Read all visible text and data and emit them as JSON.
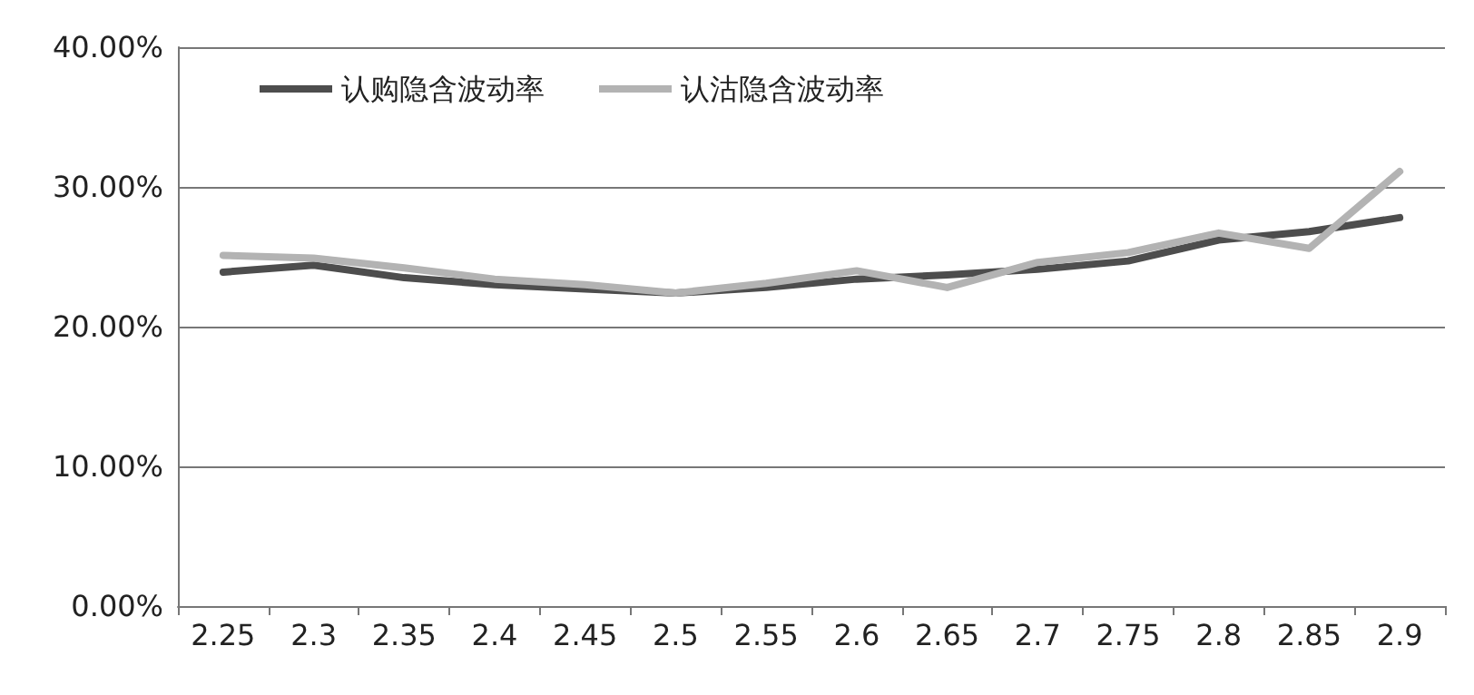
{
  "chart_data": {
    "type": "line",
    "categories": [
      "2.25",
      "2.3",
      "2.35",
      "2.4",
      "2.45",
      "2.5",
      "2.55",
      "2.6",
      "2.65",
      "2.7",
      "2.75",
      "2.8",
      "2.85",
      "2.9"
    ],
    "series": [
      {
        "name": "认购隐含波动率",
        "color": "#4d4d4d",
        "values": [
          23.9,
          24.4,
          23.5,
          23.0,
          22.7,
          22.4,
          22.8,
          23.4,
          23.7,
          24.1,
          24.7,
          26.2,
          26.8,
          27.8
        ]
      },
      {
        "name": "认沽隐含波动率",
        "color": "#b3b3b3",
        "values": [
          25.1,
          24.9,
          24.2,
          23.4,
          23.0,
          22.4,
          23.1,
          24.0,
          22.8,
          24.6,
          25.3,
          26.7,
          25.6,
          31.1
        ]
      }
    ],
    "ylim": [
      0,
      40
    ],
    "yticks": [
      {
        "value": 0,
        "label": "0.00%"
      },
      {
        "value": 10,
        "label": "10.00%"
      },
      {
        "value": 20,
        "label": "20.00%"
      },
      {
        "value": 30,
        "label": "30.00%"
      },
      {
        "value": 40,
        "label": "40.00%"
      }
    ],
    "grid": "y",
    "legend": "top left",
    "marker": "none",
    "line_style": "solid"
  }
}
